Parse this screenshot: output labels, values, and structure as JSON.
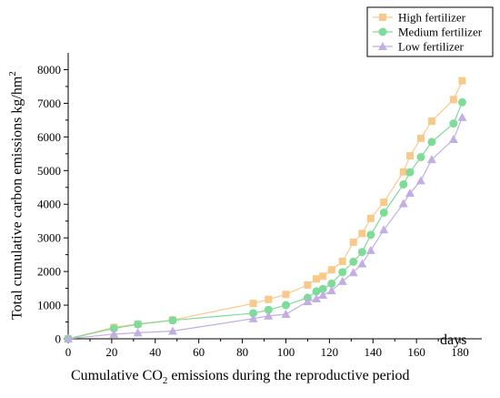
{
  "chart_data": {
    "type": "line",
    "title": "",
    "xlabel": {
      "prefix": "Cumulative CO",
      "subscript": "2",
      "suffix": " emissions during the reproductive period"
    },
    "x_unit_label": "days",
    "ylabel": {
      "prefix": "Total cumulative carbon emissions kg/hm",
      "superscript": "2"
    },
    "xlim": [
      0,
      190
    ],
    "ylim": [
      0,
      8500
    ],
    "xticks": [
      0,
      20,
      40,
      60,
      80,
      100,
      120,
      140,
      160,
      180
    ],
    "yticks": [
      0,
      1000,
      2000,
      3000,
      4000,
      5000,
      6000,
      7000,
      8000
    ],
    "grid": false,
    "legend_position": "top-right",
    "series": [
      {
        "name": "High fertilizer",
        "marker": "square",
        "color": "#f9c98a",
        "x": [
          0,
          21,
          32,
          48,
          85,
          92,
          100,
          110,
          114,
          117,
          121,
          126,
          131,
          135,
          139,
          145,
          154,
          157,
          162,
          167,
          177,
          181
        ],
        "y": [
          0,
          340,
          440,
          560,
          1050,
          1170,
          1320,
          1600,
          1780,
          1860,
          2050,
          2300,
          2870,
          3130,
          3580,
          4060,
          4960,
          5440,
          5960,
          6470,
          7110,
          7670
        ]
      },
      {
        "name": "Medium fertilizer",
        "marker": "circle",
        "color": "#7ddc98",
        "x": [
          0,
          21,
          32,
          48,
          85,
          92,
          100,
          110,
          114,
          117,
          121,
          126,
          131,
          135,
          139,
          145,
          154,
          157,
          162,
          167,
          177,
          181
        ],
        "y": [
          0,
          310,
          430,
          550,
          760,
          860,
          1000,
          1220,
          1410,
          1480,
          1640,
          1980,
          2290,
          2580,
          3090,
          3750,
          4590,
          4950,
          5400,
          5850,
          6400,
          7030
        ]
      },
      {
        "name": "Low fertilizer",
        "marker": "triangle",
        "color": "#c3aee3",
        "x": [
          0,
          21,
          32,
          48,
          85,
          92,
          100,
          110,
          114,
          117,
          121,
          126,
          131,
          135,
          139,
          145,
          154,
          157,
          162,
          167,
          177,
          181
        ],
        "y": [
          0,
          140,
          180,
          230,
          600,
          680,
          730,
          1110,
          1190,
          1300,
          1430,
          1710,
          1970,
          2230,
          2630,
          3240,
          4020,
          4330,
          4700,
          5330,
          5930,
          6580
        ]
      }
    ]
  }
}
